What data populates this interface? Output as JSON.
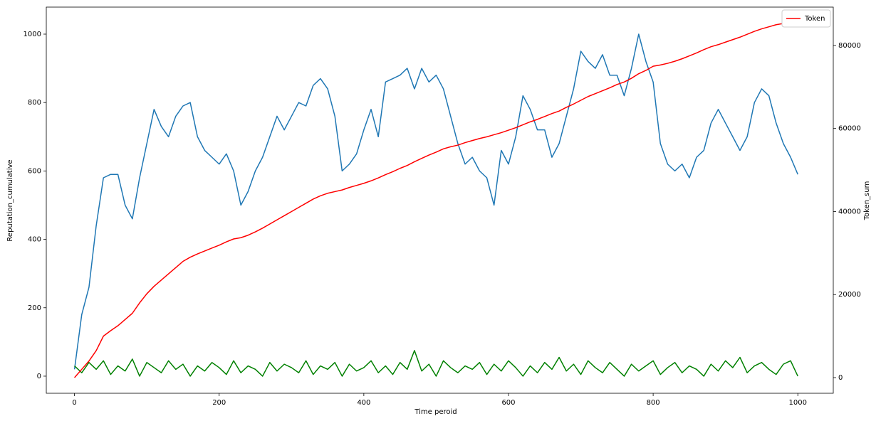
{
  "chart_data": {
    "type": "line",
    "xlabel": "Time peroid",
    "ylabel": "Reputation_cumulative",
    "y2label": "Token_sum",
    "x": [
      0,
      10,
      20,
      30,
      40,
      50,
      60,
      70,
      80,
      90,
      100,
      110,
      120,
      130,
      140,
      150,
      160,
      170,
      180,
      190,
      200,
      210,
      220,
      230,
      240,
      250,
      260,
      270,
      280,
      290,
      300,
      310,
      320,
      330,
      340,
      350,
      360,
      370,
      380,
      390,
      400,
      410,
      420,
      430,
      440,
      450,
      460,
      470,
      480,
      490,
      500,
      510,
      520,
      530,
      540,
      550,
      560,
      570,
      580,
      590,
      600,
      610,
      620,
      630,
      640,
      650,
      660,
      670,
      680,
      690,
      700,
      710,
      720,
      730,
      740,
      750,
      760,
      770,
      780,
      790,
      800,
      810,
      820,
      830,
      840,
      850,
      860,
      870,
      880,
      890,
      900,
      910,
      920,
      930,
      940,
      950,
      960,
      970,
      980,
      990,
      1000
    ],
    "series": [
      {
        "color": "#1f77b4",
        "values": [
          20,
          180,
          260,
          440,
          580,
          590,
          590,
          500,
          460,
          580,
          680,
          780,
          730,
          700,
          760,
          790,
          800,
          700,
          660,
          640,
          620,
          650,
          600,
          500,
          540,
          600,
          640,
          700,
          760,
          720,
          760,
          800,
          790,
          850,
          870,
          840,
          760,
          600,
          620,
          650,
          720,
          780,
          700,
          860,
          870,
          880,
          900,
          840,
          900,
          860,
          880,
          840,
          760,
          680,
          620,
          640,
          600,
          580,
          500,
          660,
          620,
          700,
          820,
          780,
          720,
          720,
          640,
          680,
          760,
          840,
          950,
          920,
          900,
          940,
          880,
          880,
          820,
          900,
          1000,
          920,
          860,
          680,
          620,
          600,
          620,
          580,
          640,
          660,
          740,
          780,
          740,
          700,
          660,
          700,
          800,
          840,
          820,
          740,
          680,
          640,
          590
        ]
      },
      {
        "color": "#008000",
        "values": [
          30,
          10,
          40,
          20,
          45,
          5,
          30,
          15,
          50,
          0,
          40,
          25,
          10,
          45,
          20,
          35,
          0,
          30,
          15,
          40,
          25,
          5,
          45,
          10,
          30,
          20,
          0,
          40,
          15,
          35,
          25,
          10,
          45,
          5,
          30,
          20,
          40,
          0,
          35,
          15,
          25,
          45,
          10,
          30,
          5,
          40,
          20,
          75,
          15,
          35,
          0,
          45,
          25,
          10,
          30,
          20,
          40,
          5,
          35,
          15,
          45,
          25,
          0,
          30,
          10,
          40,
          20,
          55,
          15,
          35,
          5,
          45,
          25,
          10,
          40,
          20,
          0,
          35,
          15,
          30,
          45,
          5,
          25,
          40,
          10,
          30,
          20,
          0,
          35,
          15,
          45,
          25,
          55,
          10,
          30,
          40,
          20,
          5,
          35,
          45,
          0
        ]
      },
      {
        "name": "Token",
        "color": "#ff0000",
        "axis": "y2",
        "values": [
          0,
          2000,
          4000,
          6500,
          10000,
          11300,
          12500,
          14000,
          15500,
          18000,
          20200,
          22000,
          23500,
          25000,
          26500,
          28000,
          29000,
          29800,
          30500,
          31200,
          31900,
          32700,
          33400,
          33700,
          34300,
          35100,
          36000,
          37000,
          38000,
          39000,
          40000,
          41000,
          42000,
          43000,
          43800,
          44400,
          44800,
          45200,
          45800,
          46300,
          46800,
          47400,
          48100,
          48900,
          49600,
          50400,
          51100,
          52000,
          52800,
          53600,
          54300,
          55100,
          55600,
          56000,
          56600,
          57100,
          57600,
          58000,
          58500,
          59000,
          59600,
          60200,
          60900,
          61600,
          62200,
          62900,
          63600,
          64200,
          65100,
          65900,
          66800,
          67700,
          68400,
          69100,
          69800,
          70600,
          71200,
          72100,
          73200,
          74000,
          75000,
          75300,
          75700,
          76200,
          76800,
          77500,
          78200,
          79000,
          79700,
          80200,
          80800,
          81400,
          82000,
          82700,
          83400,
          84000,
          84500,
          85000,
          85300,
          85400,
          85500
        ]
      }
    ],
    "xlim": [
      -39,
      1049
    ],
    "xticks": [
      0,
      200,
      400,
      600,
      800,
      1000
    ],
    "ylim": [
      -50,
      1079
    ],
    "yticks": [
      0,
      200,
      400,
      600,
      800,
      1000
    ],
    "y2lim": [
      -3770,
      89240
    ],
    "y2ticks": [
      0,
      20000,
      40000,
      60000,
      80000
    ],
    "grid": false,
    "legend": "upper right"
  }
}
